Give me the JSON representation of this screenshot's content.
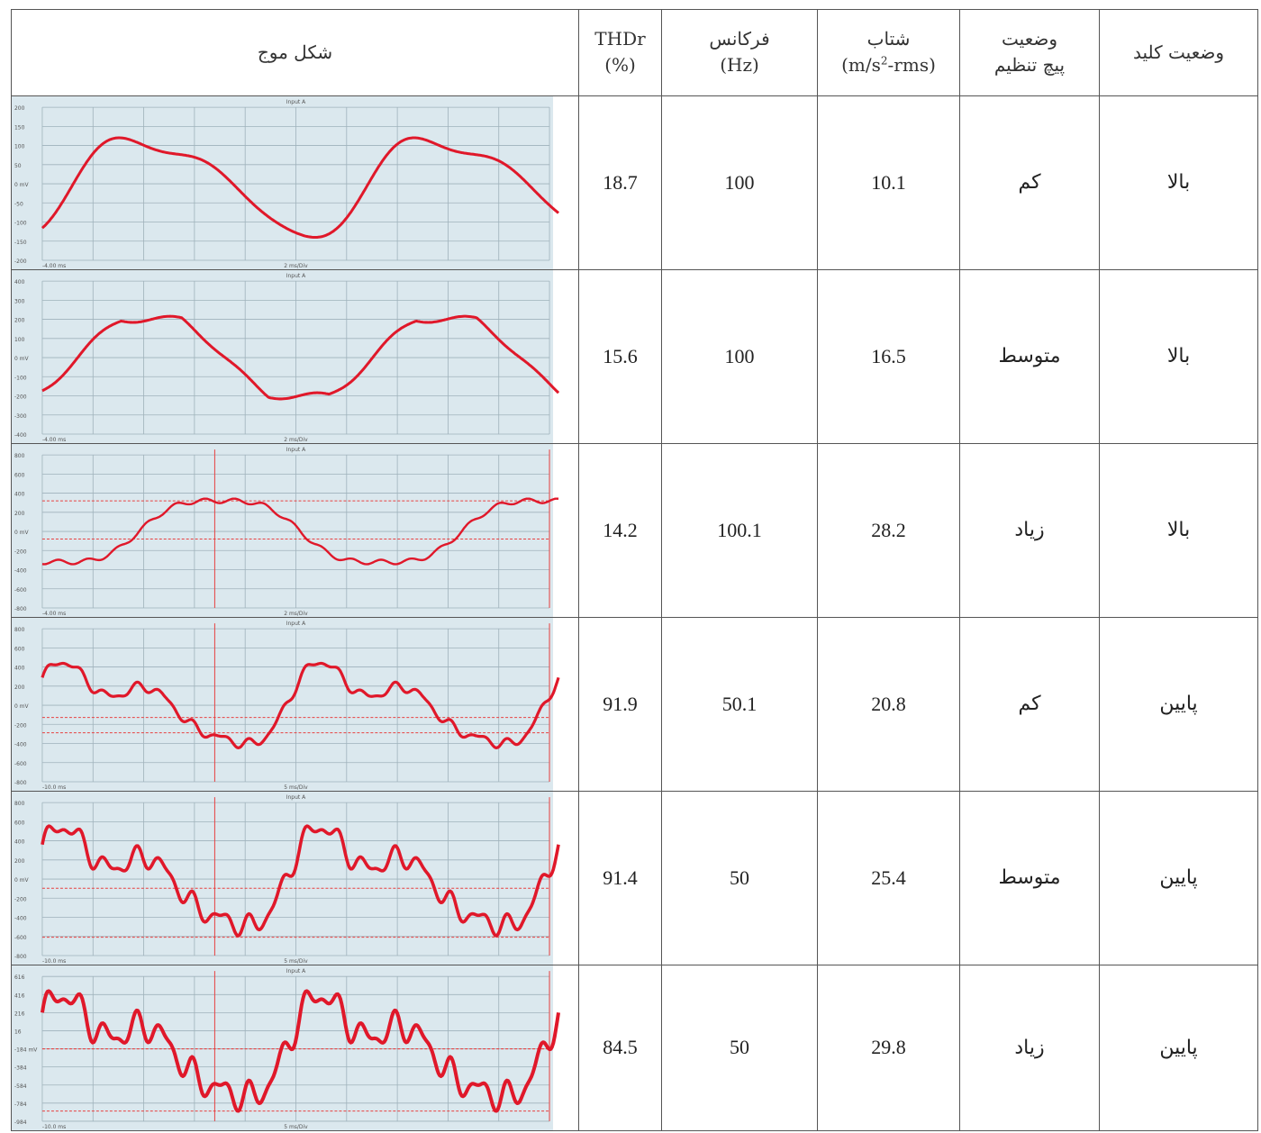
{
  "headers": {
    "waveform": "شکل موج",
    "thd_name": "THDr",
    "thd_unit": "(%)",
    "freq_name": "فرکانس",
    "freq_unit": "(Hz)",
    "accel_name": "شتاب",
    "accel_unit_pre": "(m/s",
    "accel_unit_sup": "2",
    "accel_unit_post": "-rms)",
    "screw_line1": "وضعیت",
    "screw_line2": "پیچ تنظیم",
    "switch": "وضعیت کلید"
  },
  "rows": [
    {
      "thd": "18.7",
      "freq": "100",
      "accel": "10.1",
      "screw": "کم",
      "switch": "بالا",
      "scope": {
        "title": "Input A",
        "time": "2 ms/Div",
        "start": "-4.00 ms",
        "yticks": [
          "200",
          "150",
          "100",
          "50",
          "0 mV",
          "-50",
          "-100",
          "-150",
          "-200"
        ]
      }
    },
    {
      "thd": "15.6",
      "freq": "100",
      "accel": "16.5",
      "screw": "متوسط",
      "switch": "بالا",
      "scope": {
        "title": "Input A",
        "time": "2 ms/Div",
        "start": "-4.00 ms",
        "yticks": [
          "400",
          "300",
          "200",
          "100",
          "0 mV",
          "-100",
          "-200",
          "-300",
          "-400"
        ]
      }
    },
    {
      "thd": "14.2",
      "freq": "100.1",
      "accel": "28.2",
      "screw": "زیاد",
      "switch": "بالا",
      "scope": {
        "title": "Input A",
        "time": "2 ms/Div",
        "start": "-4.00 ms",
        "yticks": [
          "800",
          "600",
          "400",
          "200",
          "0 mV",
          "-200",
          "-400",
          "-600",
          "-800"
        ]
      }
    },
    {
      "thd": "91.9",
      "freq": "50.1",
      "accel": "20.8",
      "screw": "کم",
      "switch": "پایین",
      "scope": {
        "title": "Input A",
        "time": "5 ms/Div",
        "start": "-10.0 ms",
        "yticks": [
          "800",
          "600",
          "400",
          "200",
          "0 mV",
          "-200",
          "-400",
          "-600",
          "-800"
        ]
      }
    },
    {
      "thd": "91.4",
      "freq": "50",
      "accel": "25.4",
      "screw": "متوسط",
      "switch": "پایین",
      "scope": {
        "title": "Input A",
        "time": "5 ms/Div",
        "start": "-10.0 ms",
        "yticks": [
          "800",
          "600",
          "400",
          "200",
          "0 mV",
          "-200",
          "-400",
          "-600",
          "-800"
        ]
      }
    },
    {
      "thd": "84.5",
      "freq": "50",
      "accel": "29.8",
      "screw": "زیاد",
      "switch": "پایین",
      "scope": {
        "title": "Input A",
        "time": "5 ms/Div",
        "start": "-10.0 ms",
        "yticks": [
          "616",
          "416",
          "216",
          "16",
          "-184 mV",
          "-384",
          "-584",
          "-784",
          "-984"
        ]
      }
    }
  ],
  "colors": {
    "scope_bg": "#dbe8ee",
    "grid": "#9fb2bb",
    "trace": "#e0182a",
    "cursor": "#e84040"
  }
}
